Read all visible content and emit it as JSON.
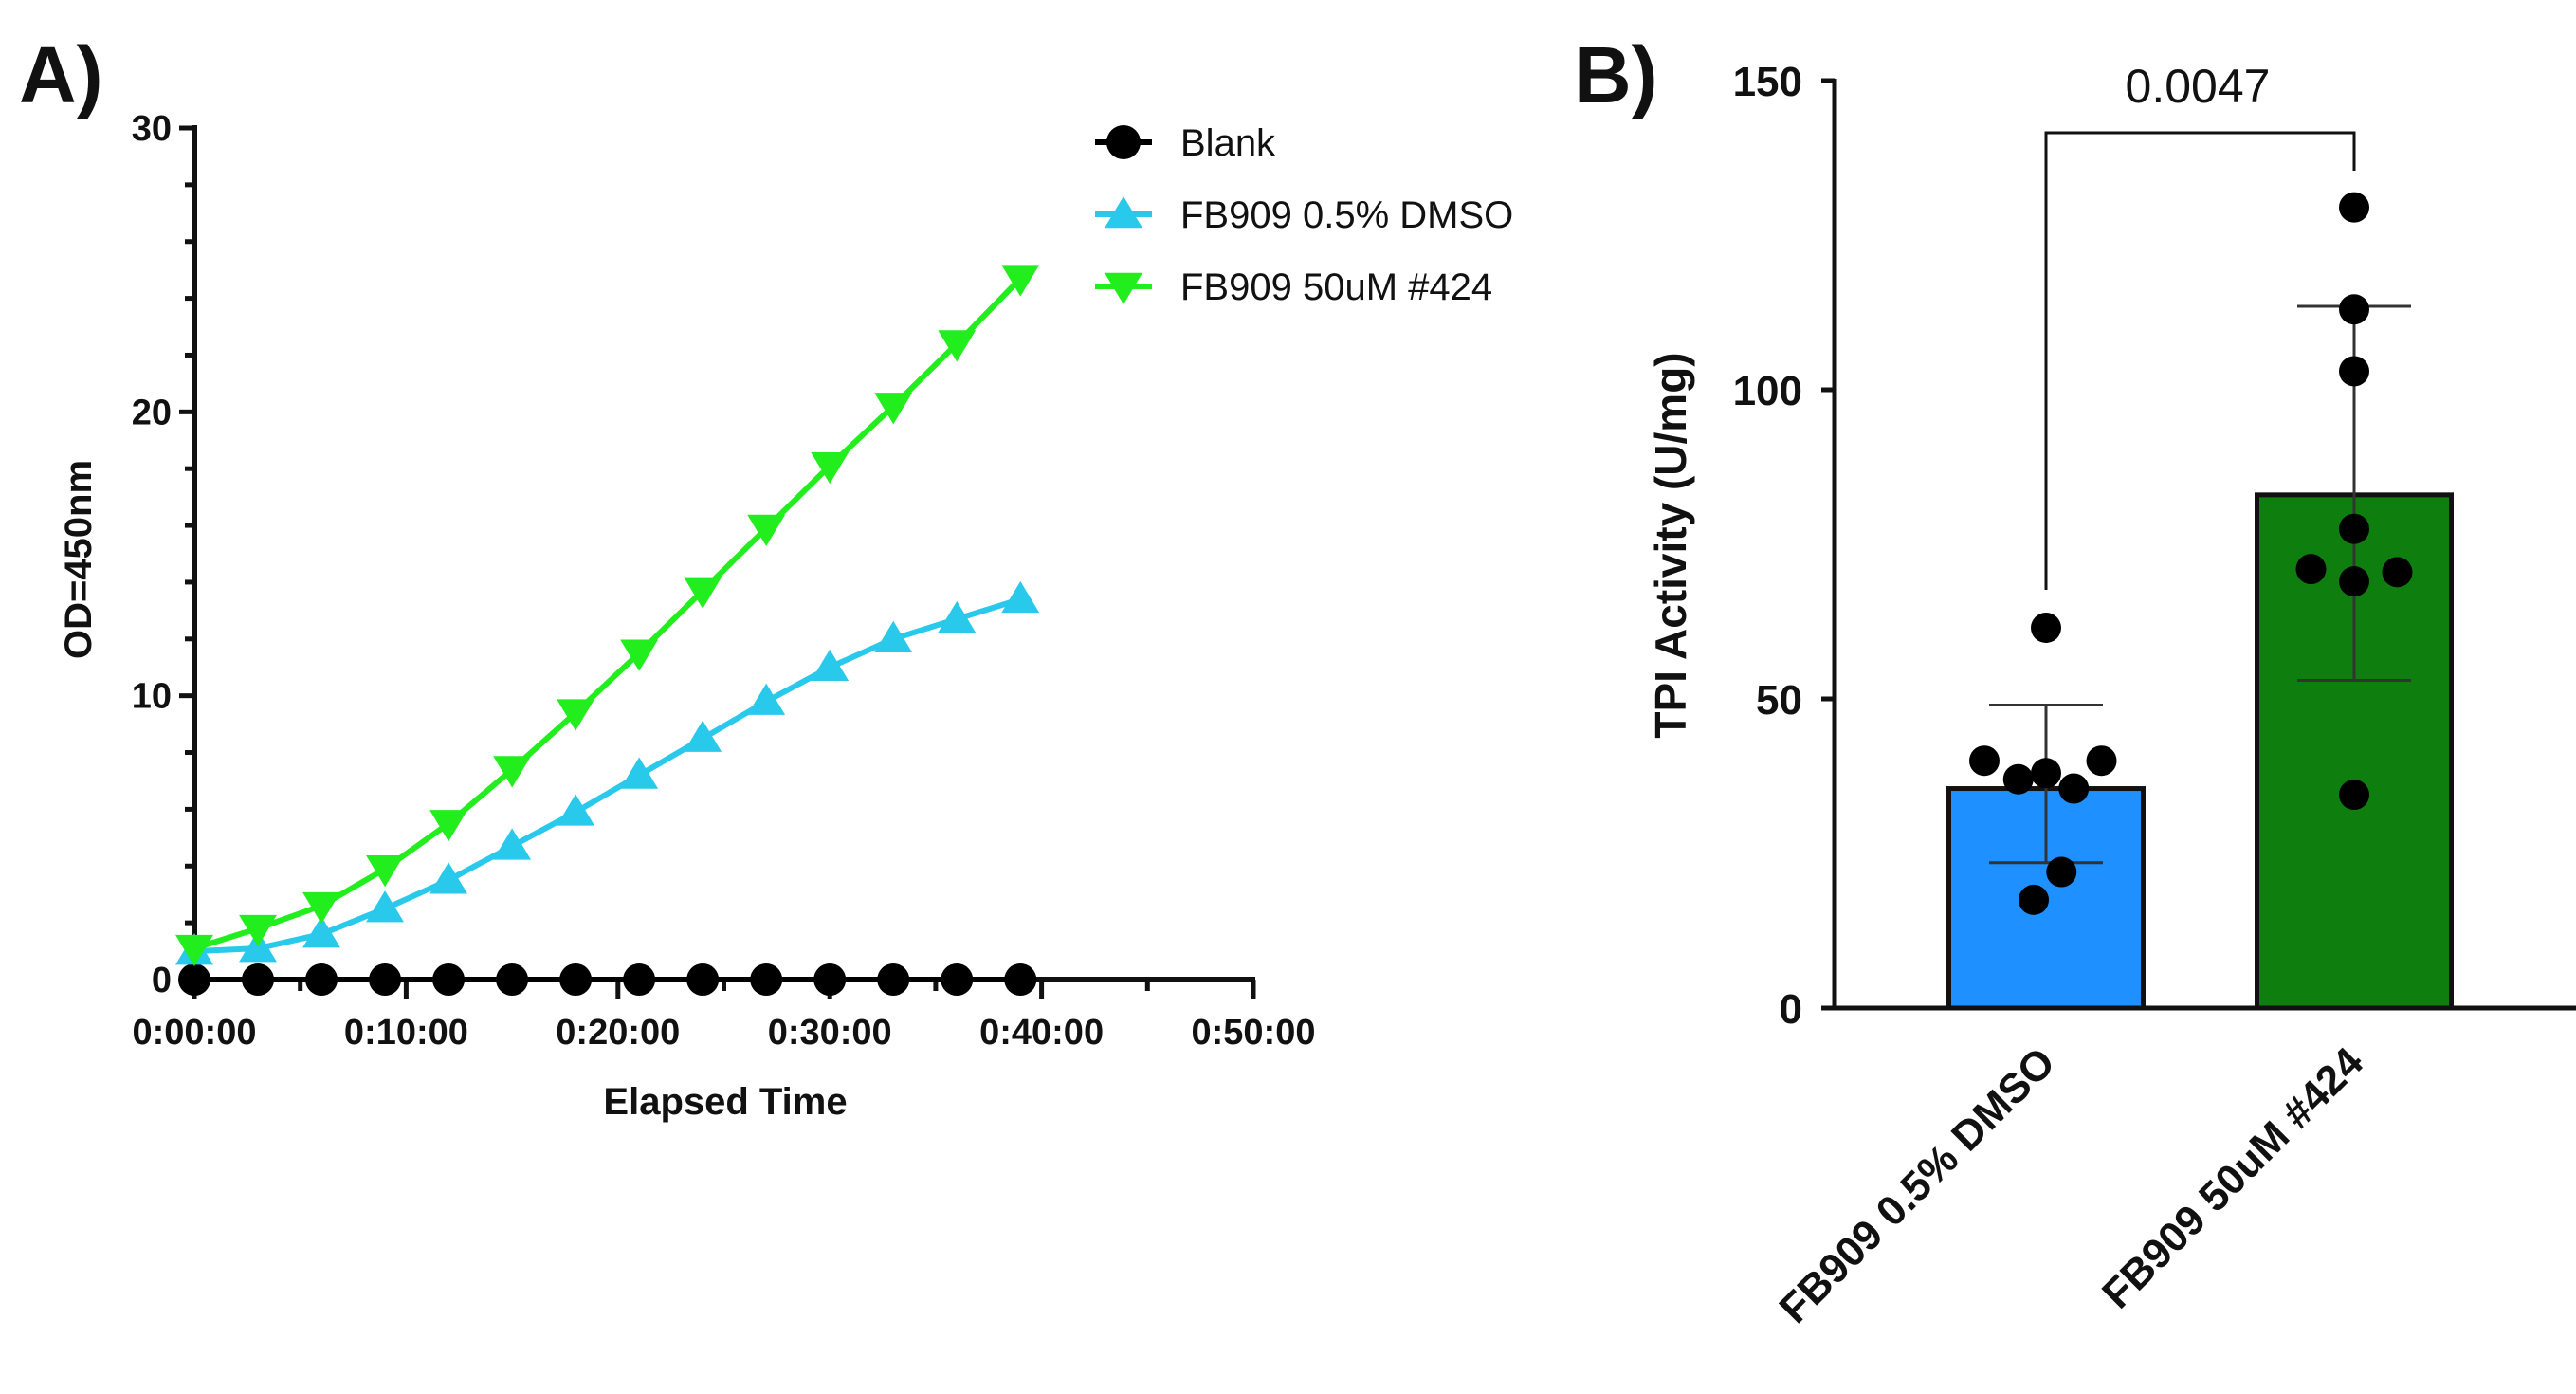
{
  "panels": {
    "a": "A)",
    "b": "B)"
  },
  "chart_data": [
    {
      "type": "line",
      "xlabel": "Elapsed Time",
      "ylabel": "OD=450nm",
      "xlim": [
        0,
        50
      ],
      "ylim": [
        0,
        30
      ],
      "x_tick_values": [
        0,
        10,
        20,
        30,
        40,
        50
      ],
      "x_tick_labels": [
        "0:00:00",
        "0:10:00",
        "0:20:00",
        "0:30:00",
        "0:40:00",
        "0:50:00"
      ],
      "y_ticks": [
        0,
        10,
        20,
        30
      ],
      "x": [
        0,
        3,
        6,
        9,
        12,
        15,
        18,
        21,
        24,
        27,
        30,
        33,
        36,
        39
      ],
      "series": [
        {
          "name": "Blank",
          "marker": "circle",
          "color": "#000000",
          "values": [
            0,
            0,
            0,
            0,
            0,
            0,
            0,
            0,
            0,
            0,
            0,
            0,
            0,
            0
          ]
        },
        {
          "name": "FB909 0.5% DMSO",
          "marker": "triangle-up",
          "color": "#29C9EC",
          "values": [
            1.0,
            1.1,
            1.6,
            2.5,
            3.5,
            4.7,
            5.9,
            7.2,
            8.5,
            9.8,
            11.0,
            12.0,
            12.7,
            13.4
          ]
        },
        {
          "name": "FB909 50uM #424",
          "marker": "triangle-down",
          "color": "#22EE1E",
          "values": [
            1.1,
            1.8,
            2.6,
            3.9,
            5.5,
            7.4,
            9.4,
            11.5,
            13.7,
            15.9,
            18.1,
            20.2,
            22.4,
            24.7
          ]
        }
      ],
      "legend": "top-right"
    },
    {
      "type": "bar",
      "ylabel": "TPI Activity (U/mg)",
      "ylim": [
        0,
        150
      ],
      "y_ticks": [
        0,
        50,
        100,
        150
      ],
      "categories": [
        "FB909 0.5% DMSO",
        "FB909 50uM #424"
      ],
      "values": [
        35.5,
        83
      ],
      "colors": [
        "#1E90FF",
        "#0E7F0E"
      ],
      "error": [
        {
          "low": 23.5,
          "high": 49
        },
        {
          "low": 53,
          "high": 113.5
        }
      ],
      "points": [
        [
          {
            "v": 61.5,
            "o": 0
          },
          {
            "v": 40,
            "o": -1
          },
          {
            "v": 37,
            "o": -0.45
          },
          {
            "v": 38,
            "o": 0
          },
          {
            "v": 35.5,
            "o": 0.45
          },
          {
            "v": 40,
            "o": 0.9
          },
          {
            "v": 22,
            "o": 0.25
          },
          {
            "v": 17.5,
            "o": -0.2
          }
        ],
        [
          {
            "v": 129.5,
            "o": 0
          },
          {
            "v": 113,
            "o": 0
          },
          {
            "v": 103,
            "o": 0
          },
          {
            "v": 77.5,
            "o": 0
          },
          {
            "v": 71,
            "o": -0.7
          },
          {
            "v": 69,
            "o": 0
          },
          {
            "v": 70.5,
            "o": 0.7
          },
          {
            "v": 34.5,
            "o": 0
          }
        ]
      ],
      "comparison": {
        "p_value": "0.0047"
      }
    }
  ]
}
